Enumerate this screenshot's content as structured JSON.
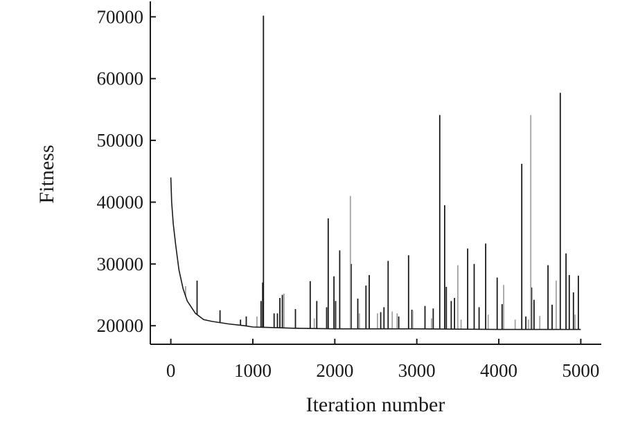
{
  "chart_data": {
    "type": "line",
    "title": "",
    "xlabel": "Iteration number",
    "ylabel": "Fitness",
    "xlim": [
      -250,
      5250
    ],
    "ylim": [
      17000,
      72500
    ],
    "xticks": [
      0,
      1000,
      2000,
      3000,
      4000,
      5000
    ],
    "yticks": [
      20000,
      30000,
      40000,
      50000,
      60000,
      70000
    ],
    "xtick_labels": [
      "0",
      "1000",
      "2000",
      "3000",
      "4000",
      "5000"
    ],
    "ytick_labels": [
      "20000",
      "30000",
      "40000",
      "50000",
      "60000",
      "70000"
    ],
    "grid": false,
    "legend": "none",
    "baseline": [
      [
        0,
        44000
      ],
      [
        10,
        40000
      ],
      [
        30,
        36500
      ],
      [
        60,
        33000
      ],
      [
        100,
        29000
      ],
      [
        150,
        26000
      ],
      [
        200,
        24000
      ],
      [
        300,
        22000
      ],
      [
        400,
        21000
      ],
      [
        500,
        20700
      ],
      [
        700,
        20300
      ],
      [
        900,
        20000
      ],
      [
        1000,
        19800
      ],
      [
        1500,
        19600
      ],
      [
        2000,
        19500
      ],
      [
        3000,
        19500
      ],
      [
        4000,
        19400
      ],
      [
        5000,
        19400
      ]
    ],
    "series": [
      {
        "color": "#1a1a1a",
        "spikes": [
          [
            320,
            27300
          ],
          [
            600,
            22500
          ],
          [
            850,
            21000
          ],
          [
            920,
            21500
          ],
          [
            1100,
            24000
          ],
          [
            1120,
            27000
          ],
          [
            1130,
            70200
          ],
          [
            1260,
            22000
          ],
          [
            1300,
            22000
          ],
          [
            1330,
            24500
          ],
          [
            1360,
            25000
          ],
          [
            1520,
            22700
          ],
          [
            1700,
            27200
          ],
          [
            1780,
            24000
          ],
          [
            1900,
            23000
          ],
          [
            1920,
            37400
          ],
          [
            1990,
            28000
          ],
          [
            2010,
            24000
          ],
          [
            2060,
            32200
          ],
          [
            2200,
            30000
          ],
          [
            2280,
            24400
          ],
          [
            2380,
            26500
          ],
          [
            2420,
            28200
          ],
          [
            2560,
            22200
          ],
          [
            2600,
            23000
          ],
          [
            2650,
            30500
          ],
          [
            2780,
            21500
          ],
          [
            2900,
            31400
          ],
          [
            2940,
            22600
          ],
          [
            3100,
            23200
          ],
          [
            3200,
            22800
          ],
          [
            3280,
            54100
          ],
          [
            3340,
            39500
          ],
          [
            3360,
            26300
          ],
          [
            3420,
            24000
          ],
          [
            3460,
            24500
          ],
          [
            3620,
            32500
          ],
          [
            3700,
            30000
          ],
          [
            3760,
            23000
          ],
          [
            3840,
            33300
          ],
          [
            3980,
            27800
          ],
          [
            4040,
            23500
          ],
          [
            4280,
            46200
          ],
          [
            4330,
            21500
          ],
          [
            4400,
            26200
          ],
          [
            4430,
            24200
          ],
          [
            4600,
            29800
          ],
          [
            4650,
            23400
          ],
          [
            4750,
            57700
          ],
          [
            4820,
            31700
          ],
          [
            4860,
            28200
          ],
          [
            4910,
            25400
          ],
          [
            4970,
            28100
          ]
        ]
      },
      {
        "color": "#a3a3a3",
        "spikes": [
          [
            180,
            26400
          ],
          [
            1050,
            21500
          ],
          [
            1380,
            25200
          ],
          [
            1750,
            21200
          ],
          [
            2190,
            41000
          ],
          [
            2300,
            22000
          ],
          [
            2520,
            22000
          ],
          [
            2700,
            22300
          ],
          [
            2760,
            22000
          ],
          [
            2950,
            22500
          ],
          [
            3180,
            21200
          ],
          [
            3500,
            29800
          ],
          [
            3540,
            21000
          ],
          [
            3870,
            21800
          ],
          [
            4060,
            26600
          ],
          [
            4200,
            21000
          ],
          [
            4360,
            21000
          ],
          [
            4390,
            54100
          ],
          [
            4500,
            21600
          ],
          [
            4700,
            27300
          ],
          [
            4930,
            21800
          ]
        ]
      }
    ]
  }
}
